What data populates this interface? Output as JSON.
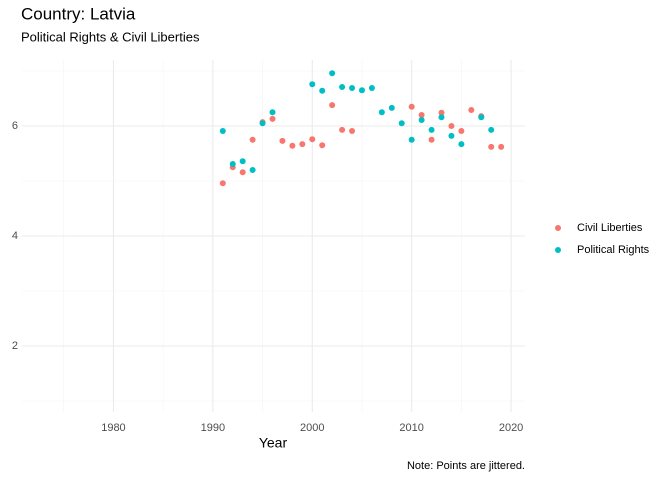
{
  "chart_data": {
    "type": "scatter",
    "title": "Country: Latvia",
    "subtitle": "Political Rights & Civil Liberties",
    "x_label": "Year",
    "caption": "Note: Points are jittered.",
    "xlim": [
      1970.8,
      2021.4
    ],
    "xticks": [
      1980,
      1990,
      2000,
      2010,
      2020
    ],
    "ylim": [
      0.8,
      7.2
    ],
    "yticks": [
      2,
      4,
      6
    ],
    "grid": true,
    "minor_grid": true,
    "legend_position": "right",
    "series": [
      {
        "name": "Civil Liberties",
        "color": "#f8766d",
        "x": [
          1991,
          1992,
          1993,
          1994,
          1995,
          1996,
          1997,
          1998,
          1999,
          2000,
          2001,
          2002,
          2003,
          2004,
          2010,
          2011,
          2012,
          2013,
          2014,
          2015,
          2016,
          2017,
          2018,
          2019
        ],
        "values": [
          4.96,
          5.25,
          5.16,
          5.75,
          6.07,
          6.13,
          5.73,
          5.64,
          5.67,
          5.76,
          5.65,
          6.38,
          5.93,
          5.91,
          6.35,
          6.2,
          5.75,
          6.24,
          6.0,
          5.91,
          6.29,
          6.18,
          5.62,
          5.62
        ]
      },
      {
        "name": "Political Rights",
        "color": "#00bfc4",
        "x": [
          1991,
          1992,
          1993,
          1994,
          1995,
          1996,
          2000,
          2001,
          2002,
          2003,
          2004,
          2005,
          2006,
          2007,
          2008,
          2009,
          2010,
          2011,
          2012,
          2013,
          2014,
          2015,
          2017,
          2018
        ],
        "values": [
          5.91,
          5.31,
          5.36,
          5.2,
          6.05,
          6.25,
          6.76,
          6.64,
          6.96,
          6.71,
          6.69,
          6.65,
          6.69,
          6.25,
          6.33,
          6.05,
          5.75,
          6.11,
          5.93,
          6.16,
          5.82,
          5.67,
          6.16,
          5.93
        ]
      }
    ]
  }
}
